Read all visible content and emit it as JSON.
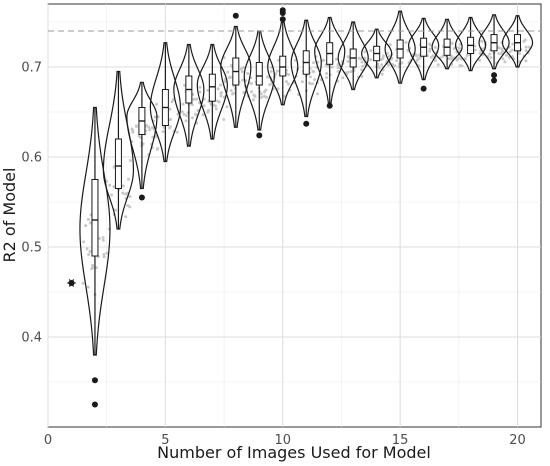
{
  "chart_data": {
    "type": "violin",
    "xlabel": "Number of Images Used for Model",
    "ylabel": "R2 of Model",
    "xlim": [
      0,
      21
    ],
    "ylim": [
      0.3,
      0.77
    ],
    "x_ticks": [
      0,
      5,
      10,
      15,
      20
    ],
    "y_ticks": [
      0.4,
      0.5,
      0.6,
      0.7
    ],
    "x_tick_labels": [
      "0",
      "5",
      "10",
      "15",
      "20"
    ],
    "y_tick_labels": [
      "0.4",
      "0.5",
      "0.6",
      "0.7"
    ],
    "grid": true,
    "reference_line": {
      "y": 0.74,
      "style": "dashed"
    },
    "single_point": {
      "x": 1,
      "y": 0.46
    },
    "violins": [
      {
        "x": 2,
        "min": 0.38,
        "max": 0.655,
        "q1": 0.49,
        "median": 0.53,
        "q3": 0.575,
        "mode": 0.52,
        "outliers": [
          0.352,
          0.325
        ]
      },
      {
        "x": 3,
        "min": 0.52,
        "max": 0.695,
        "q1": 0.565,
        "median": 0.59,
        "q3": 0.62,
        "mode": 0.585,
        "outliers": []
      },
      {
        "x": 4,
        "min": 0.565,
        "max": 0.683,
        "q1": 0.625,
        "median": 0.64,
        "q3": 0.655,
        "mode": 0.645,
        "outliers": [
          0.555
        ]
      },
      {
        "x": 5,
        "min": 0.595,
        "max": 0.727,
        "q1": 0.635,
        "median": 0.655,
        "q3": 0.675,
        "mode": 0.655,
        "outliers": []
      },
      {
        "x": 6,
        "min": 0.612,
        "max": 0.725,
        "q1": 0.66,
        "median": 0.675,
        "q3": 0.69,
        "mode": 0.675,
        "outliers": []
      },
      {
        "x": 7,
        "min": 0.62,
        "max": 0.725,
        "q1": 0.662,
        "median": 0.678,
        "q3": 0.692,
        "mode": 0.68,
        "outliers": []
      },
      {
        "x": 8,
        "min": 0.633,
        "max": 0.745,
        "q1": 0.68,
        "median": 0.695,
        "q3": 0.71,
        "mode": 0.7,
        "outliers": [
          0.757
        ]
      },
      {
        "x": 9,
        "min": 0.63,
        "max": 0.74,
        "q1": 0.68,
        "median": 0.69,
        "q3": 0.705,
        "mode": 0.69,
        "outliers": [
          0.624
        ]
      },
      {
        "x": 10,
        "min": 0.658,
        "max": 0.75,
        "q1": 0.69,
        "median": 0.7,
        "q3": 0.712,
        "mode": 0.7,
        "outliers": [
          0.763,
          0.76,
          0.753
        ]
      },
      {
        "x": 11,
        "min": 0.645,
        "max": 0.752,
        "q1": 0.692,
        "median": 0.705,
        "q3": 0.718,
        "mode": 0.705,
        "outliers": [
          0.637
        ]
      },
      {
        "x": 12,
        "min": 0.66,
        "max": 0.755,
        "q1": 0.703,
        "median": 0.715,
        "q3": 0.727,
        "mode": 0.718,
        "outliers": [
          0.657
        ]
      },
      {
        "x": 13,
        "min": 0.675,
        "max": 0.75,
        "q1": 0.7,
        "median": 0.71,
        "q3": 0.72,
        "mode": 0.71,
        "outliers": []
      },
      {
        "x": 14,
        "min": 0.688,
        "max": 0.742,
        "q1": 0.707,
        "median": 0.715,
        "q3": 0.723,
        "mode": 0.715,
        "outliers": []
      },
      {
        "x": 15,
        "min": 0.682,
        "max": 0.762,
        "q1": 0.71,
        "median": 0.72,
        "q3": 0.73,
        "mode": 0.72,
        "outliers": []
      },
      {
        "x": 16,
        "min": 0.686,
        "max": 0.754,
        "q1": 0.712,
        "median": 0.722,
        "q3": 0.732,
        "mode": 0.724,
        "outliers": [
          0.676
        ]
      },
      {
        "x": 17,
        "min": 0.698,
        "max": 0.753,
        "q1": 0.713,
        "median": 0.722,
        "q3": 0.731,
        "mode": 0.722,
        "outliers": []
      },
      {
        "x": 18,
        "min": 0.696,
        "max": 0.755,
        "q1": 0.715,
        "median": 0.724,
        "q3": 0.733,
        "mode": 0.724,
        "outliers": []
      },
      {
        "x": 19,
        "min": 0.698,
        "max": 0.758,
        "q1": 0.718,
        "median": 0.727,
        "q3": 0.736,
        "mode": 0.727,
        "outliers": [
          0.691,
          0.685
        ]
      },
      {
        "x": 20,
        "min": 0.7,
        "max": 0.757,
        "q1": 0.718,
        "median": 0.727,
        "q3": 0.736,
        "mode": 0.727,
        "outliers": []
      }
    ]
  }
}
